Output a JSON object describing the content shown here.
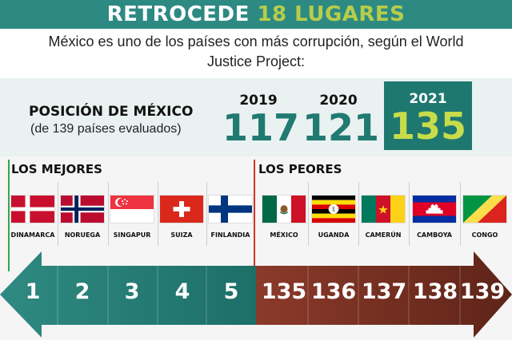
{
  "header": {
    "title_main": "RETROCEDE",
    "title_highlight": "18 LUGARES"
  },
  "subtitle": "México es uno de los países con más corrupción, según el World Justice Project:",
  "position": {
    "title": "POSICIÓN DE MÉXICO",
    "subtitle": "(de 139 países evaluados)",
    "years": [
      {
        "year": "2019",
        "value": "117"
      },
      {
        "year": "2020",
        "value": "121"
      },
      {
        "year": "2021",
        "value": "135"
      }
    ]
  },
  "sections": {
    "best": "LOS MEJORES",
    "worst": "LOS PEORES"
  },
  "countries": [
    {
      "name": "DINAMARCA",
      "rank": "1",
      "flag": "denmark-flag"
    },
    {
      "name": "NORUEGA",
      "rank": "2",
      "flag": "norway-flag"
    },
    {
      "name": "SINGAPUR",
      "rank": "3",
      "flag": "singapore-flag"
    },
    {
      "name": "SUIZA",
      "rank": "4",
      "flag": "switzerland-flag"
    },
    {
      "name": "FINLANDIA",
      "rank": "5",
      "flag": "finland-flag"
    },
    {
      "name": "MÉXICO",
      "rank": "135",
      "flag": "mexico-flag"
    },
    {
      "name": "UGANDA",
      "rank": "136",
      "flag": "uganda-flag"
    },
    {
      "name": "CAMERÚN",
      "rank": "137",
      "flag": "cameroon-flag"
    },
    {
      "name": "CAMBOYA",
      "rank": "138",
      "flag": "cambodia-flag"
    },
    {
      "name": "CONGO",
      "rank": "139",
      "flag": "congo-flag"
    }
  ],
  "colors": {
    "header_bg": "#2d8a83",
    "highlight": "#b7cd4a",
    "best_arrow": "#2f8a82",
    "worst_arrow": "#6e2e22",
    "value_2021": "#c8dc4a"
  }
}
